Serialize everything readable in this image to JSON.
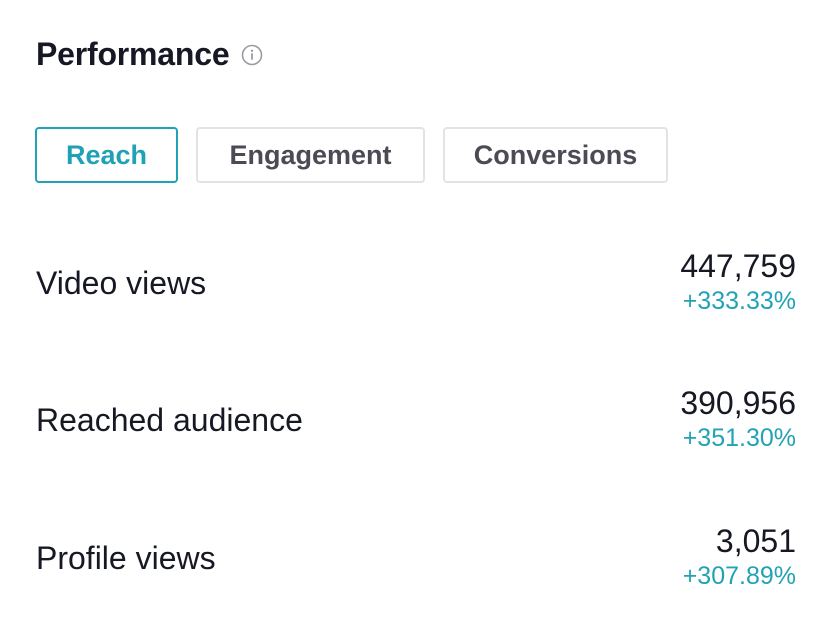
{
  "header": {
    "title": "Performance",
    "info_icon": "info-circle-icon"
  },
  "tabs": [
    {
      "label": "Reach",
      "active": true
    },
    {
      "label": "Engagement",
      "active": false
    },
    {
      "label": "Conversions",
      "active": false
    }
  ],
  "metrics": [
    {
      "label": "Video views",
      "value": "447,759",
      "change": "+333.33%"
    },
    {
      "label": "Reached audience",
      "value": "390,956",
      "change": "+351.30%"
    },
    {
      "label": "Profile views",
      "value": "3,051",
      "change": "+307.89%"
    }
  ],
  "colors": {
    "accent": "#21a2b5",
    "text_primary": "#161823",
    "text_secondary": "#4a4b54",
    "tab_border": "#e3e3e4"
  }
}
